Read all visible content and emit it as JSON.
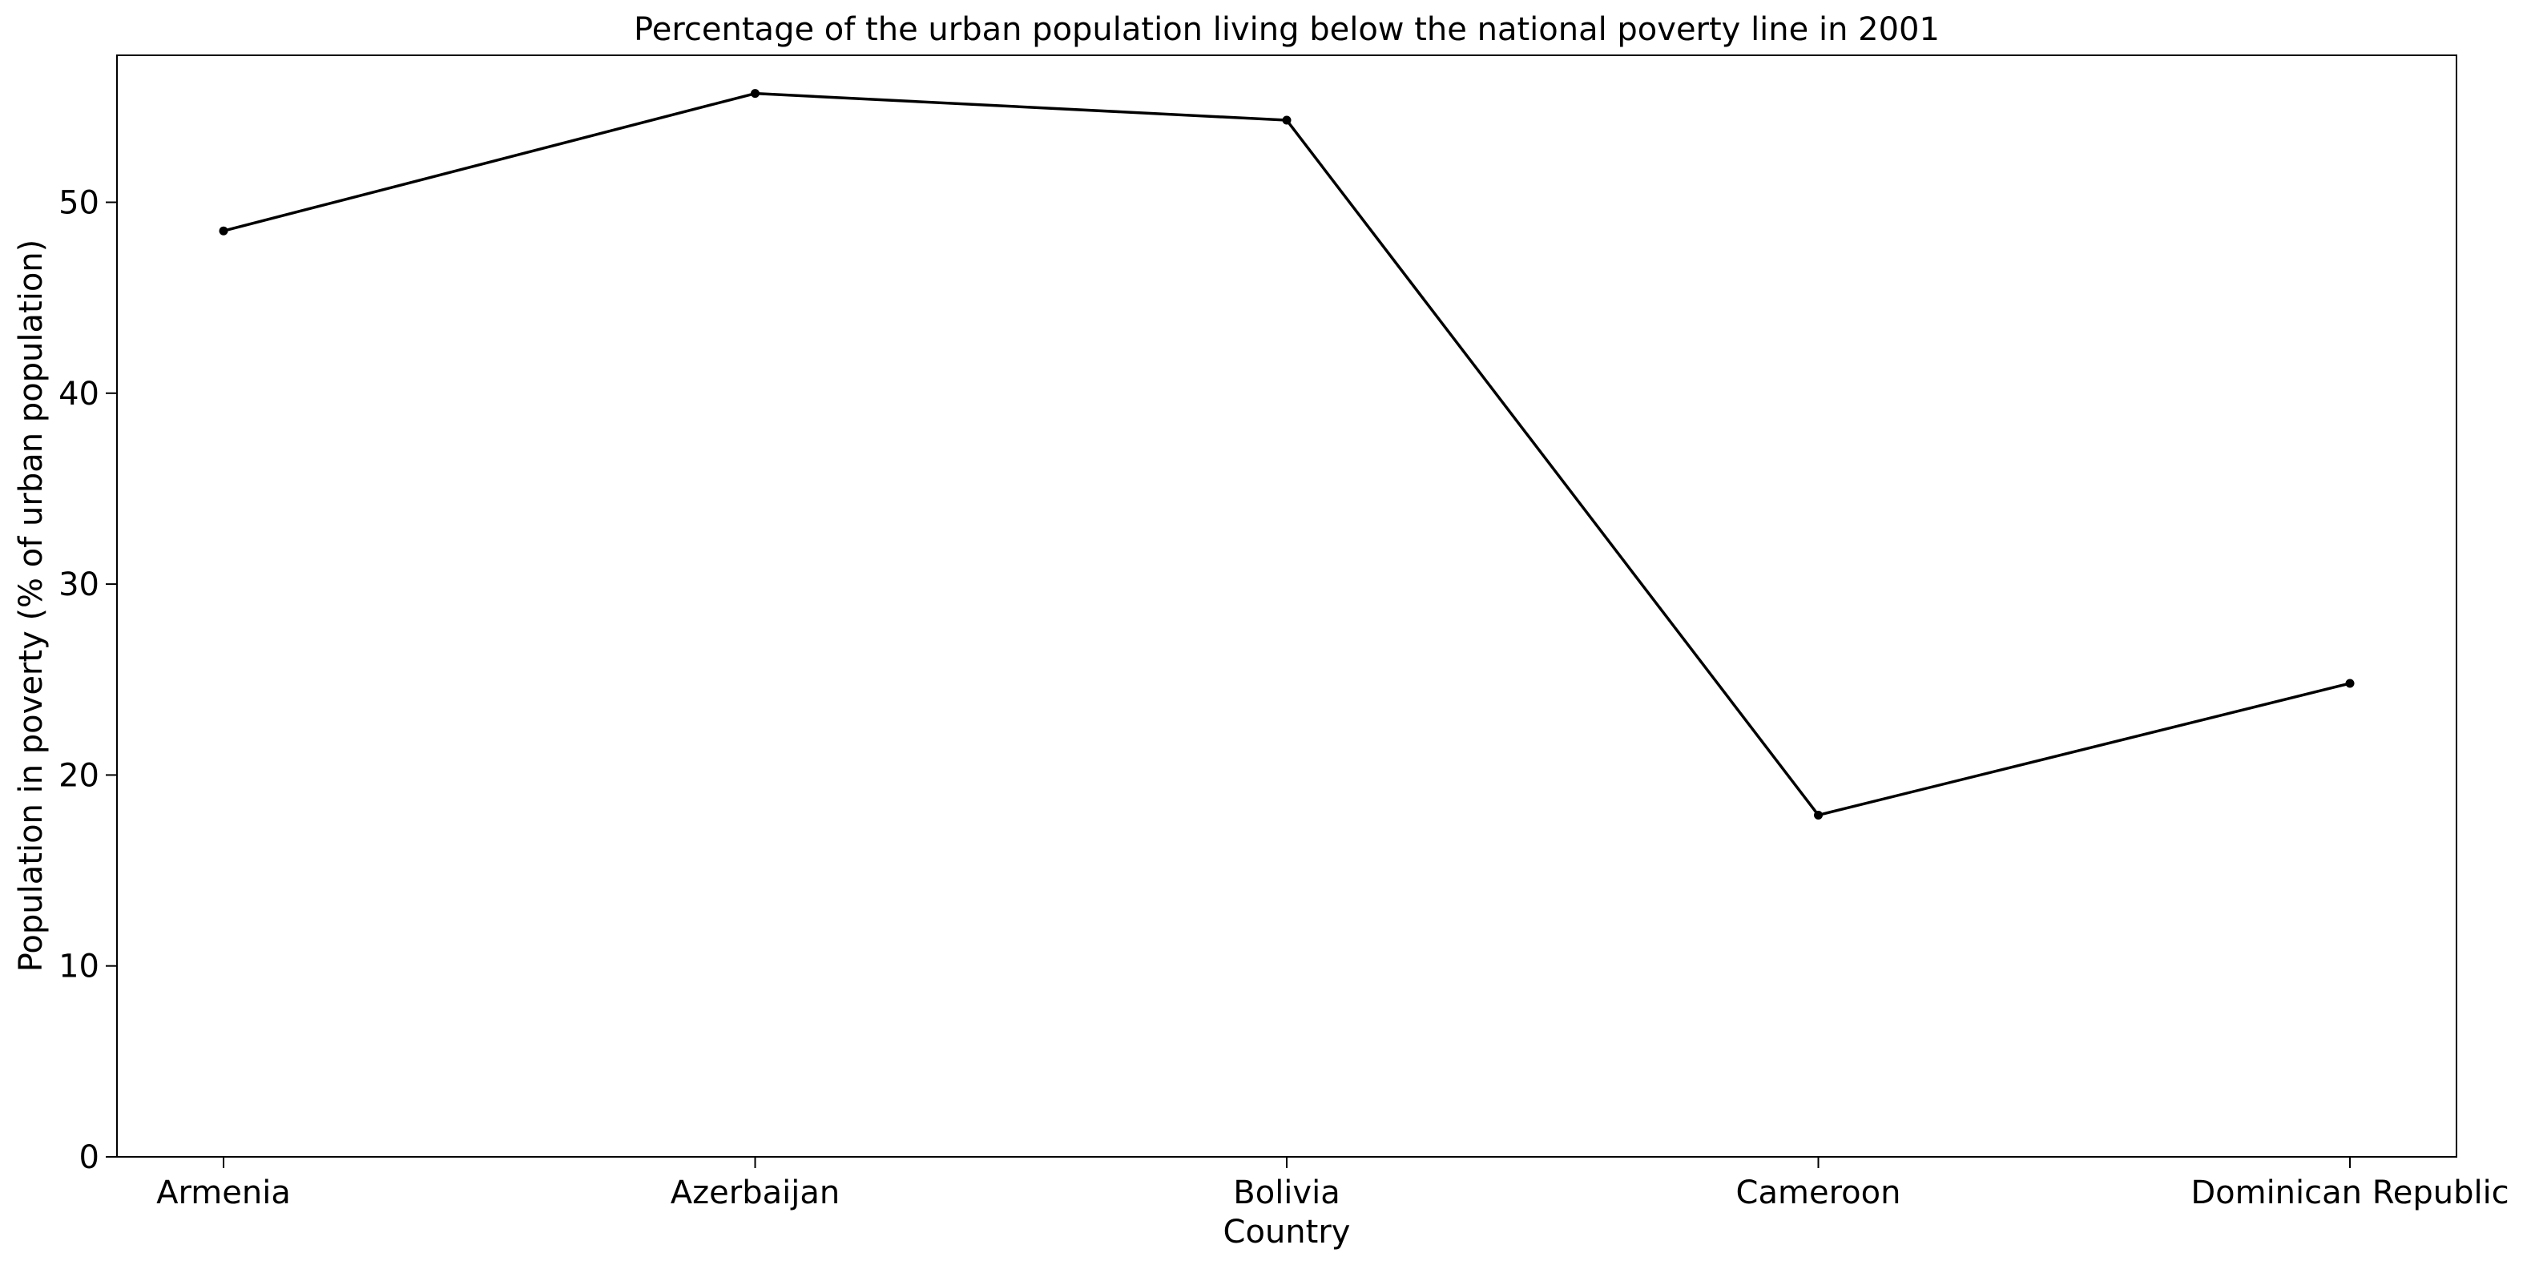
{
  "chart_data": {
    "type": "line",
    "title": "Percentage of the urban population living below the national poverty line in 2001",
    "xlabel": "Country",
    "ylabel": "Population in poverty (% of urban population)",
    "categories": [
      "Armenia",
      "Azerbaijan",
      "Bolivia",
      "Cameroon",
      "Dominican Republic"
    ],
    "series": [
      {
        "values": [
          48.5,
          55.7,
          54.3,
          17.9,
          24.8
        ],
        "color": "#000000",
        "marker": "circle"
      }
    ],
    "yticks": [
      0,
      10,
      20,
      30,
      40,
      50
    ],
    "ylim": [
      0,
      57.7
    ],
    "grid": false,
    "legend": false
  }
}
